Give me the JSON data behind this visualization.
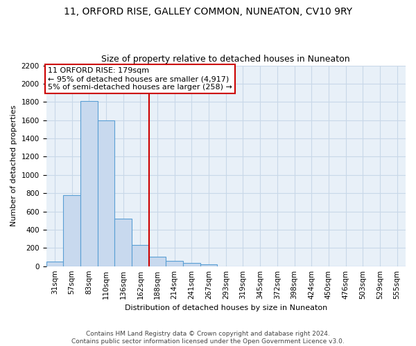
{
  "title1": "11, ORFORD RISE, GALLEY COMMON, NUNEATON, CV10 9RY",
  "title2": "Size of property relative to detached houses in Nuneaton",
  "xlabel": "Distribution of detached houses by size in Nuneaton",
  "ylabel": "Number of detached properties",
  "footer1": "Contains HM Land Registry data © Crown copyright and database right 2024.",
  "footer2": "Contains public sector information licensed under the Open Government Licence v3.0.",
  "categories": [
    "31sqm",
    "57sqm",
    "83sqm",
    "110sqm",
    "136sqm",
    "162sqm",
    "188sqm",
    "214sqm",
    "241sqm",
    "267sqm",
    "293sqm",
    "319sqm",
    "345sqm",
    "372sqm",
    "398sqm",
    "424sqm",
    "450sqm",
    "476sqm",
    "503sqm",
    "529sqm",
    "555sqm"
  ],
  "values": [
    50,
    775,
    1810,
    1600,
    520,
    235,
    105,
    55,
    35,
    20,
    0,
    0,
    0,
    0,
    0,
    0,
    0,
    0,
    0,
    0,
    0
  ],
  "bar_color": "#c8d9ee",
  "bar_edge_color": "#5a9fd4",
  "property_label": "11 ORFORD RISE: 179sqm",
  "annotation_line1": "← 95% of detached houses are smaller (4,917)",
  "annotation_line2": "5% of semi-detached houses are larger (258) →",
  "vline_color": "#cc0000",
  "red_line_x": 5.5,
  "ylim": [
    0,
    2200
  ],
  "yticks": [
    0,
    200,
    400,
    600,
    800,
    1000,
    1200,
    1400,
    1600,
    1800,
    2000,
    2200
  ],
  "annotation_box_facecolor": "#ffffff",
  "annotation_box_edgecolor": "#cc0000",
  "grid_color": "#c8d8e8",
  "background_color": "#e8f0f8",
  "title_fontsize": 10,
  "subtitle_fontsize": 9,
  "axis_label_fontsize": 8,
  "tick_fontsize": 7.5,
  "annotation_fontsize": 8,
  "footer_fontsize": 6.5
}
